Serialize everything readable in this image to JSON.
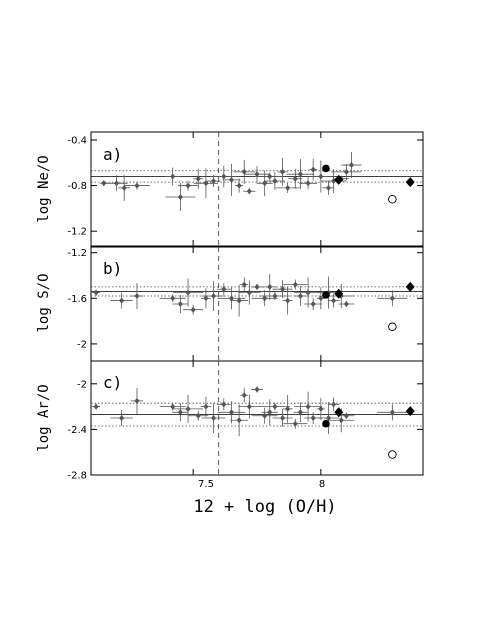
{
  "chart_data": [
    {
      "type": "scatter",
      "panel_label": "a)",
      "ylabel": "log Ne/O",
      "xlim": [
        7.1,
        8.4
      ],
      "ylim": [
        -1.33,
        -0.33
      ],
      "yticks": [
        "-0.4",
        "-0.8",
        "-1.2"
      ],
      "ytick_values": [
        -0.4,
        -0.8,
        -1.2
      ],
      "vline_x": 7.6,
      "hlines_dotted": [
        -0.67,
        -0.77
      ],
      "hline_solid": -0.72,
      "points": [
        {
          "x": 7.15,
          "y": -0.78
        },
        {
          "x": 7.2,
          "y": -0.78
        },
        {
          "x": 7.23,
          "y": -0.82
        },
        {
          "x": 7.28,
          "y": -0.8
        },
        {
          "x": 7.42,
          "y": -0.72
        },
        {
          "x": 7.45,
          "y": -0.9
        },
        {
          "x": 7.48,
          "y": -0.8
        },
        {
          "x": 7.52,
          "y": -0.74
        },
        {
          "x": 7.55,
          "y": -0.78
        },
        {
          "x": 7.58,
          "y": -0.76
        },
        {
          "x": 7.62,
          "y": -0.72
        },
        {
          "x": 7.65,
          "y": -0.75
        },
        {
          "x": 7.68,
          "y": -0.8
        },
        {
          "x": 7.7,
          "y": -0.68
        },
        {
          "x": 7.72,
          "y": -0.85
        },
        {
          "x": 7.75,
          "y": -0.7
        },
        {
          "x": 7.78,
          "y": -0.78
        },
        {
          "x": 7.8,
          "y": -0.72
        },
        {
          "x": 7.82,
          "y": -0.76
        },
        {
          "x": 7.85,
          "y": -0.68
        },
        {
          "x": 7.87,
          "y": -0.82
        },
        {
          "x": 7.9,
          "y": -0.74
        },
        {
          "x": 7.92,
          "y": -0.7
        },
        {
          "x": 7.95,
          "y": -0.78
        },
        {
          "x": 7.97,
          "y": -0.66
        },
        {
          "x": 8.0,
          "y": -0.72
        },
        {
          "x": 8.03,
          "y": -0.82
        },
        {
          "x": 8.05,
          "y": -0.76
        },
        {
          "x": 8.08,
          "y": -0.74
        },
        {
          "x": 8.1,
          "y": -0.68
        },
        {
          "x": 8.12,
          "y": -0.62
        }
      ],
      "special": [
        {
          "marker": "filled-circle",
          "x": 8.02,
          "y": -0.65
        },
        {
          "marker": "filled-diamond",
          "x": 8.07,
          "y": -0.75
        },
        {
          "marker": "filled-diamond",
          "x": 8.35,
          "y": -0.77
        },
        {
          "marker": "open-circle",
          "x": 8.28,
          "y": -0.92
        }
      ]
    },
    {
      "type": "scatter",
      "panel_label": "b)",
      "ylabel": "log S/O",
      "xlim": [
        7.1,
        8.4
      ],
      "ylim": [
        -2.15,
        -1.15
      ],
      "yticks": [
        "-1.2",
        "-1.6",
        "-2"
      ],
      "ytick_values": [
        -1.2,
        -1.6,
        -2.0
      ],
      "vline_x": 7.6,
      "hlines_dotted": [
        -1.5,
        -1.58
      ],
      "hline_solid": -1.54,
      "points": [
        {
          "x": 7.12,
          "y": -1.55
        },
        {
          "x": 7.22,
          "y": -1.62
        },
        {
          "x": 7.28,
          "y": -1.58
        },
        {
          "x": 7.42,
          "y": -1.6
        },
        {
          "x": 7.45,
          "y": -1.65
        },
        {
          "x": 7.48,
          "y": -1.55
        },
        {
          "x": 7.5,
          "y": -1.7
        },
        {
          "x": 7.55,
          "y": -1.6
        },
        {
          "x": 7.58,
          "y": -1.58
        },
        {
          "x": 7.62,
          "y": -1.52
        },
        {
          "x": 7.65,
          "y": -1.6
        },
        {
          "x": 7.68,
          "y": -1.62
        },
        {
          "x": 7.7,
          "y": -1.48
        },
        {
          "x": 7.72,
          "y": -1.55
        },
        {
          "x": 7.75,
          "y": -1.5
        },
        {
          "x": 7.78,
          "y": -1.6
        },
        {
          "x": 7.8,
          "y": -1.5
        },
        {
          "x": 7.82,
          "y": -1.58
        },
        {
          "x": 7.85,
          "y": -1.52
        },
        {
          "x": 7.87,
          "y": -1.62
        },
        {
          "x": 7.9,
          "y": -1.48
        },
        {
          "x": 7.92,
          "y": -1.58
        },
        {
          "x": 7.95,
          "y": -1.55
        },
        {
          "x": 7.97,
          "y": -1.65
        },
        {
          "x": 8.0,
          "y": -1.6
        },
        {
          "x": 8.03,
          "y": -1.55
        },
        {
          "x": 8.05,
          "y": -1.62
        },
        {
          "x": 8.08,
          "y": -1.58
        },
        {
          "x": 8.1,
          "y": -1.65
        },
        {
          "x": 8.28,
          "y": -1.6
        }
      ],
      "special": [
        {
          "marker": "filled-circle",
          "x": 8.02,
          "y": -1.57
        },
        {
          "marker": "filled-diamond",
          "x": 8.07,
          "y": -1.56
        },
        {
          "marker": "filled-diamond",
          "x": 8.35,
          "y": -1.5
        },
        {
          "marker": "open-circle",
          "x": 8.28,
          "y": -1.85
        }
      ]
    },
    {
      "type": "scatter",
      "panel_label": "c)",
      "ylabel": "log Ar/O",
      "xlim": [
        7.1,
        8.4
      ],
      "ylim": [
        -2.8,
        -1.8
      ],
      "yticks": [
        "-2",
        "-2.4",
        "-2.8"
      ],
      "ytick_values": [
        -2.0,
        -2.4,
        -2.8
      ],
      "vline_x": 7.6,
      "hlines_dotted": [
        -2.17,
        -2.37
      ],
      "hline_solid": -2.27,
      "points": [
        {
          "x": 7.12,
          "y": -2.2
        },
        {
          "x": 7.22,
          "y": -2.3
        },
        {
          "x": 7.28,
          "y": -2.15
        },
        {
          "x": 7.42,
          "y": -2.2
        },
        {
          "x": 7.45,
          "y": -2.25
        },
        {
          "x": 7.48,
          "y": -2.22
        },
        {
          "x": 7.52,
          "y": -2.28
        },
        {
          "x": 7.55,
          "y": -2.2
        },
        {
          "x": 7.58,
          "y": -2.3
        },
        {
          "x": 7.62,
          "y": -2.18
        },
        {
          "x": 7.65,
          "y": -2.25
        },
        {
          "x": 7.68,
          "y": -2.32
        },
        {
          "x": 7.7,
          "y": -2.1
        },
        {
          "x": 7.72,
          "y": -2.2
        },
        {
          "x": 7.75,
          "y": -2.05
        },
        {
          "x": 7.78,
          "y": -2.28
        },
        {
          "x": 7.8,
          "y": -2.25
        },
        {
          "x": 7.82,
          "y": -2.2
        },
        {
          "x": 7.85,
          "y": -2.3
        },
        {
          "x": 7.87,
          "y": -2.22
        },
        {
          "x": 7.9,
          "y": -2.35
        },
        {
          "x": 7.92,
          "y": -2.25
        },
        {
          "x": 7.95,
          "y": -2.2
        },
        {
          "x": 7.97,
          "y": -2.3
        },
        {
          "x": 8.0,
          "y": -2.22
        },
        {
          "x": 8.03,
          "y": -2.3
        },
        {
          "x": 8.05,
          "y": -2.18
        },
        {
          "x": 8.08,
          "y": -2.32
        },
        {
          "x": 8.1,
          "y": -2.28
        },
        {
          "x": 8.28,
          "y": -2.25
        }
      ],
      "special": [
        {
          "marker": "filled-circle",
          "x": 8.02,
          "y": -2.35
        },
        {
          "marker": "filled-diamond",
          "x": 8.07,
          "y": -2.25
        },
        {
          "marker": "filled-diamond",
          "x": 8.35,
          "y": -2.24
        },
        {
          "marker": "open-circle",
          "x": 8.28,
          "y": -2.62
        }
      ]
    }
  ],
  "xaxis": {
    "label": "12 + log (O/H)",
    "ticks": [
      "7.5",
      "8"
    ],
    "tick_values": [
      7.5,
      8.0
    ]
  },
  "colors": {
    "points": "#555555",
    "markers": "#000000",
    "frame": "#000000"
  }
}
